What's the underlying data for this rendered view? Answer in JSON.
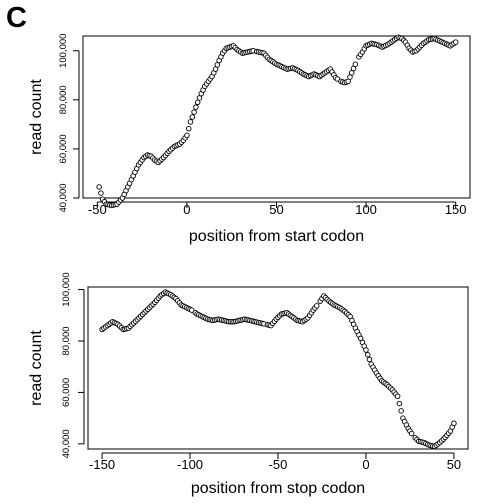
{
  "panel_label": "C",
  "chart_data": [
    {
      "type": "scatter",
      "title": "",
      "xlabel": "position from start codon",
      "ylabel": "read count",
      "xlim": [
        -50,
        150
      ],
      "ylim": [
        40000,
        106000
      ],
      "xticks": [
        -50,
        0,
        50,
        100,
        150
      ],
      "xtick_labels": [
        "-50",
        "0",
        "50",
        "100",
        "150"
      ],
      "yticks": [
        40000,
        60000,
        80000,
        100000
      ],
      "ytick_labels": [
        "40,000",
        "60,000",
        "80,000",
        "100,000"
      ],
      "grid": false,
      "legend": "none",
      "marker": "open-circle",
      "x_step": 1,
      "knots_x": [
        -49,
        -47,
        -45,
        -42,
        -39,
        -36,
        -33,
        -30,
        -27,
        -24,
        -22,
        -20,
        -18,
        -16,
        -13,
        -10,
        -7,
        -4,
        -2,
        0,
        2,
        4,
        6,
        8,
        10,
        12,
        14,
        16,
        18,
        20,
        22,
        24,
        26,
        28,
        31,
        34,
        37,
        40,
        43,
        46,
        48,
        50,
        53,
        56,
        59,
        62,
        65,
        68,
        71,
        74,
        77,
        80,
        83,
        86,
        88,
        90,
        92,
        94,
        96,
        98,
        100,
        103,
        106,
        109,
        112,
        115,
        118,
        120,
        122,
        124,
        126,
        128,
        130,
        132,
        135,
        138,
        141,
        144,
        147,
        150
      ],
      "knots_y": [
        44500,
        39500,
        37500,
        37000,
        37500,
        40000,
        44500,
        49000,
        53500,
        56500,
        57500,
        57000,
        55500,
        54500,
        56500,
        59000,
        61000,
        62000,
        63500,
        65500,
        71000,
        75000,
        79000,
        82500,
        85500,
        87500,
        89500,
        92500,
        96000,
        99000,
        101000,
        101500,
        102000,
        100500,
        99000,
        99500,
        100000,
        99500,
        99000,
        96500,
        95500,
        94500,
        93500,
        92500,
        93000,
        92000,
        90500,
        89500,
        90500,
        89500,
        91000,
        92500,
        89000,
        87500,
        87000,
        87500,
        91000,
        94500,
        97500,
        99500,
        102000,
        103000,
        102500,
        101500,
        102500,
        104000,
        105500,
        105000,
        103500,
        101000,
        99500,
        100000,
        101500,
        103000,
        104500,
        105000,
        104000,
        103000,
        102000,
        103500
      ],
      "gaps_x": [
        38,
        85,
        95
      ]
    },
    {
      "type": "scatter",
      "title": "",
      "xlabel": "position from stop codon",
      "ylabel": "read count",
      "xlim": [
        -150,
        50
      ],
      "ylim": [
        38000,
        101000
      ],
      "xticks": [
        -150,
        -100,
        -50,
        0,
        50
      ],
      "xtick_labels": [
        "-150",
        "-100",
        "-50",
        "0",
        "50"
      ],
      "yticks": [
        40000,
        60000,
        80000,
        100000
      ],
      "ytick_labels": [
        "40,000",
        "60,000",
        "80,000",
        "100,000"
      ],
      "grid": false,
      "legend": "none",
      "marker": "open-circle",
      "x_step": 1,
      "knots_x": [
        -150,
        -147,
        -144,
        -141,
        -138,
        -135,
        -132,
        -129,
        -126,
        -123,
        -120,
        -117,
        -114,
        -111,
        -108,
        -105,
        -102,
        -99,
        -96,
        -93,
        -90,
        -87,
        -84,
        -81,
        -78,
        -75,
        -72,
        -69,
        -66,
        -63,
        -60,
        -57,
        -54,
        -51,
        -48,
        -45,
        -42,
        -39,
        -36,
        -33,
        -30,
        -27,
        -24,
        -21,
        -18,
        -15,
        -12,
        -9,
        -6,
        -3,
        0,
        3,
        6,
        9,
        12,
        15,
        18,
        21,
        24,
        27,
        30,
        33,
        36,
        39,
        42,
        45,
        48,
        50
      ],
      "knots_y": [
        84500,
        86000,
        87500,
        86500,
        84500,
        85000,
        87000,
        89000,
        91000,
        93000,
        95000,
        97500,
        99000,
        98000,
        96500,
        94000,
        93000,
        92000,
        90500,
        89500,
        88500,
        88000,
        88500,
        88000,
        87500,
        87500,
        88000,
        88500,
        88000,
        87500,
        87000,
        86500,
        86000,
        88500,
        90500,
        91000,
        89500,
        88000,
        87500,
        89000,
        92000,
        94500,
        97500,
        95500,
        94000,
        93000,
        91500,
        89500,
        85000,
        81000,
        76500,
        71000,
        67500,
        64500,
        63000,
        61000,
        58500,
        50000,
        46000,
        43000,
        41000,
        40500,
        39500,
        39000,
        40500,
        42500,
        45000,
        48000
      ],
      "gaps_x": [
        -98,
        -57,
        -27,
        27
      ]
    }
  ]
}
